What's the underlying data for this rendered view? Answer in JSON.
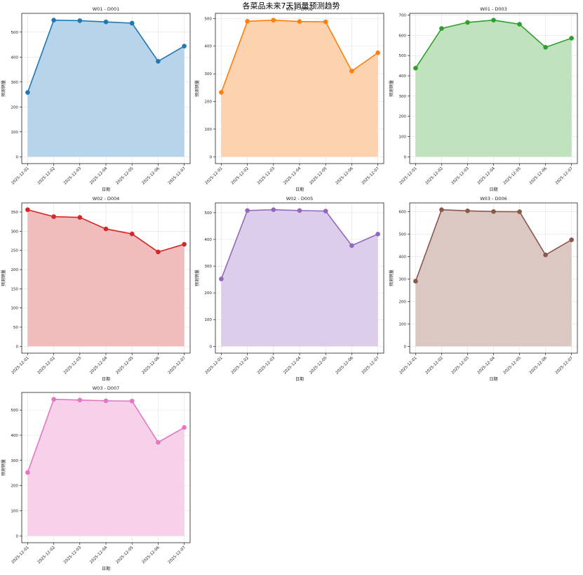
{
  "suptitle": "各菜品未来7天销量预测趋势",
  "chart_data": [
    {
      "type": "area",
      "title": "W01 - D001",
      "xlabel": "日期",
      "ylabel": "预测销量",
      "categories": [
        "2025-12-01",
        "2025-12-02",
        "2025-12-03",
        "2025-12-04",
        "2025-12-05",
        "2025-12-06",
        "2025-12-07"
      ],
      "values": [
        258,
        548,
        546,
        541,
        536,
        383,
        444
      ],
      "ylim": [
        0,
        500
      ],
      "yticks": [
        0,
        100,
        200,
        300,
        400,
        500
      ],
      "color": "#1f77b4",
      "fill": "#b8d4ea",
      "grid": true
    },
    {
      "type": "area",
      "title": "W01 - D002",
      "xlabel": "日期",
      "ylabel": "预测销量",
      "categories": [
        "2025-12-01",
        "2025-12-02",
        "2025-12-03",
        "2025-12-04",
        "2025-12-05",
        "2025-12-06",
        "2025-12-07"
      ],
      "values": [
        233,
        490,
        494,
        489,
        488,
        310,
        376
      ],
      "ylim": [
        0,
        500
      ],
      "yticks": [
        0,
        100,
        200,
        300,
        400,
        500
      ],
      "color": "#ff7f0e",
      "fill": "#fdd2ae",
      "grid": true
    },
    {
      "type": "area",
      "title": "W01 - D003",
      "xlabel": "日期",
      "ylabel": "预测销量",
      "categories": [
        "2025-12-01",
        "2025-12-02",
        "2025-12-03",
        "2025-12-04",
        "2025-12-05",
        "2025-12-06",
        "2025-12-07"
      ],
      "values": [
        438,
        634,
        664,
        675,
        655,
        541,
        586
      ],
      "ylim": [
        0,
        700
      ],
      "yticks": [
        0,
        100,
        200,
        300,
        400,
        500,
        600,
        700
      ],
      "color": "#2ca02c",
      "fill": "#c0e2bd",
      "grid": true
    },
    {
      "type": "area",
      "title": "W02 - D004",
      "xlabel": "日期",
      "ylabel": "预测销量",
      "categories": [
        "2025-12-01",
        "2025-12-02",
        "2025-12-03",
        "2025-12-04",
        "2025-12-05",
        "2025-12-06",
        "2025-12-07"
      ],
      "values": [
        356,
        338,
        336,
        306,
        293,
        246,
        266
      ],
      "ylim": [
        0,
        350
      ],
      "yticks": [
        0,
        50,
        100,
        150,
        200,
        250,
        300,
        350
      ],
      "color": "#d62728",
      "fill": "#f0bcbc",
      "grid": true
    },
    {
      "type": "area",
      "title": "W02 - D005",
      "xlabel": "日期",
      "ylabel": "预测销量",
      "categories": [
        "2025-12-01",
        "2025-12-02",
        "2025-12-03",
        "2025-12-04",
        "2025-12-05",
        "2025-12-06",
        "2025-12-07"
      ],
      "values": [
        252,
        508,
        511,
        508,
        506,
        377,
        420
      ],
      "ylim": [
        0,
        500
      ],
      "yticks": [
        0,
        100,
        200,
        300,
        400,
        500
      ],
      "color": "#9467bd",
      "fill": "#dccdea",
      "grid": true
    },
    {
      "type": "area",
      "title": "W03 - D006",
      "xlabel": "日期",
      "ylabel": "预测销量",
      "categories": [
        "2025-12-01",
        "2025-12-02",
        "2025-12-03",
        "2025-12-04",
        "2025-12-05",
        "2025-12-06",
        "2025-12-07"
      ],
      "values": [
        290,
        608,
        603,
        600,
        599,
        407,
        474
      ],
      "ylim": [
        0,
        600
      ],
      "yticks": [
        0,
        100,
        200,
        300,
        400,
        500,
        600
      ],
      "color": "#8c564b",
      "fill": "#dbc8c3",
      "grid": true
    },
    {
      "type": "area",
      "title": "W03 - D007",
      "xlabel": "日期",
      "ylabel": "预测销量",
      "categories": [
        "2025-12-01",
        "2025-12-02",
        "2025-12-03",
        "2025-12-04",
        "2025-12-05",
        "2025-12-06",
        "2025-12-07"
      ],
      "values": [
        252,
        543,
        540,
        537,
        536,
        372,
        431
      ],
      "ylim": [
        0,
        500
      ],
      "yticks": [
        0,
        100,
        200,
        300,
        400,
        500
      ],
      "color": "#e377c2",
      "fill": "#f7d0ea",
      "grid": true
    }
  ]
}
